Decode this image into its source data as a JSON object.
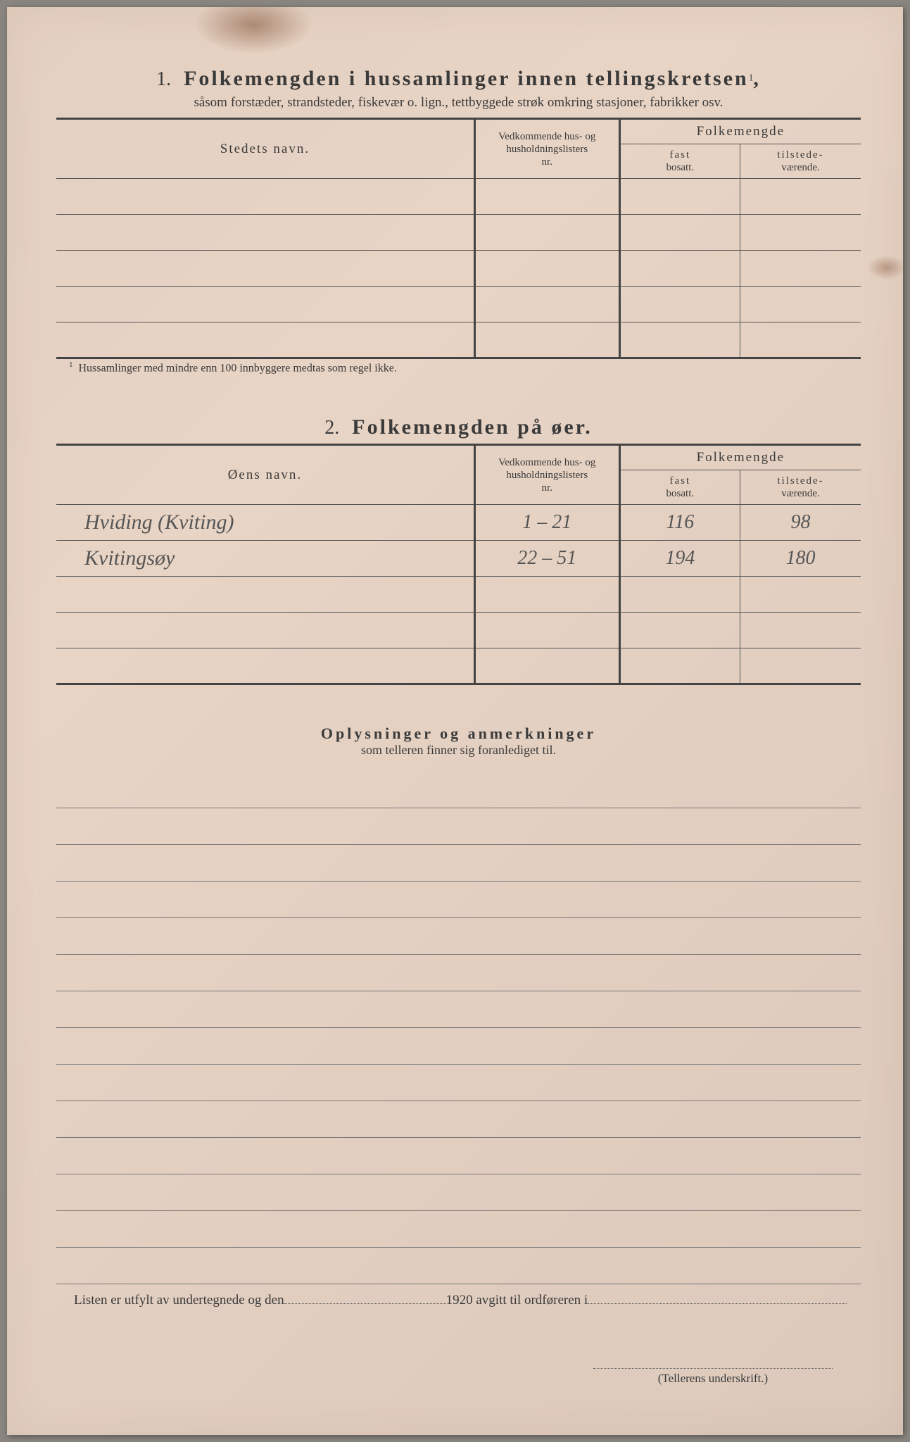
{
  "colors": {
    "paper": "#e8d4c5",
    "ink": "#3a3a3a",
    "rule": "#555",
    "thick_rule": "#444",
    "handwriting": "#555"
  },
  "section1": {
    "number": "1.",
    "heading": "Folkemengden i hussamlinger innen tellingskretsen",
    "superscript": "1",
    "subtitle": "såsom forstæder, strandsteder, fiskevær o. lign., tettbyggede strøk omkring stasjoner, fabrikker osv.",
    "col_name": "Stedets navn.",
    "col_ref_line1": "Vedkommende hus- og",
    "col_ref_line2": "husholdningslisters",
    "col_ref_line3": "nr.",
    "col_pop": "Folkemengde",
    "col_fast1": "fast",
    "col_fast2": "bosatt.",
    "col_til1": "tilstede-",
    "col_til2": "værende.",
    "row_count": 5,
    "footnote": "Hussamlinger med mindre enn 100 innbyggere medtas som regel ikke."
  },
  "section2": {
    "number": "2.",
    "heading": "Folkemengden på øer.",
    "col_name": "Øens navn.",
    "col_ref_line1": "Vedkommende hus- og",
    "col_ref_line2": "husholdningslisters",
    "col_ref_line3": "nr.",
    "col_pop": "Folkemengde",
    "col_fast1": "fast",
    "col_fast2": "bosatt.",
    "col_til1": "tilstede-",
    "col_til2": "værende.",
    "rows": [
      {
        "name": "Hviding (Kviting)",
        "ref": "1 – 21",
        "fast": "116",
        "til": "98"
      },
      {
        "name": "Kvitingsøy",
        "ref": "22 – 51",
        "fast": "194",
        "til": "180"
      },
      {
        "name": "",
        "ref": "",
        "fast": "",
        "til": ""
      },
      {
        "name": "",
        "ref": "",
        "fast": "",
        "til": ""
      },
      {
        "name": "",
        "ref": "",
        "fast": "",
        "til": ""
      }
    ]
  },
  "remarks": {
    "title": "Oplysninger og anmerkninger",
    "subtitle": "som telleren finner sig foranlediget til.",
    "line_count": 14
  },
  "footer": {
    "text_part1": "Listen er utfylt av undertegnede og den",
    "text_part2": "1920 avgitt til ordføreren i",
    "signature_label": "(Tellerens underskrift.)"
  }
}
